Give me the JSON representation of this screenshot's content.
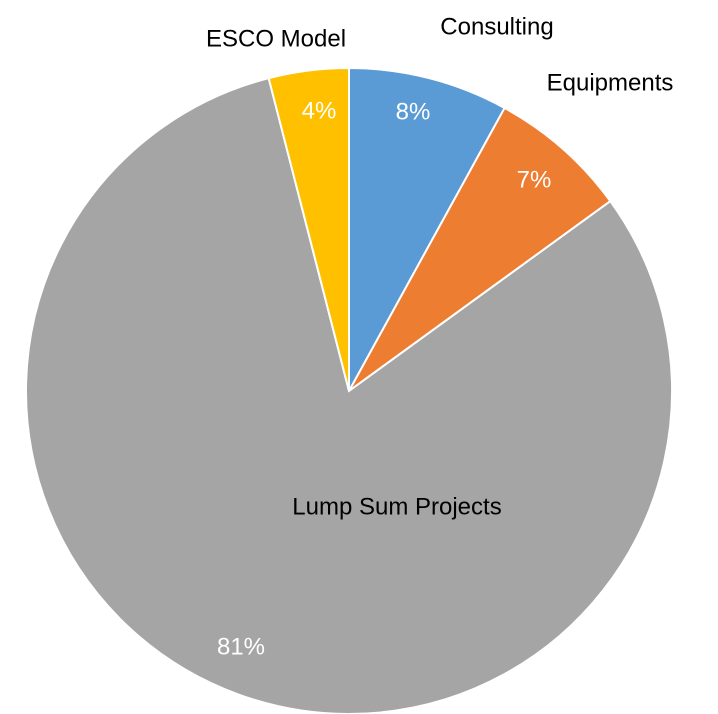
{
  "chart_data": {
    "type": "pie",
    "categories": [
      "Consulting",
      "Equipments",
      "Lump Sum Projects",
      "ESCO Model"
    ],
    "values": [
      8,
      7,
      81,
      4
    ],
    "value_labels": [
      "8%",
      "7%",
      "81%",
      "4%"
    ],
    "colors": [
      "#5b9bd5",
      "#ed7d31",
      "#a5a5a5",
      "#ffc000"
    ]
  }
}
